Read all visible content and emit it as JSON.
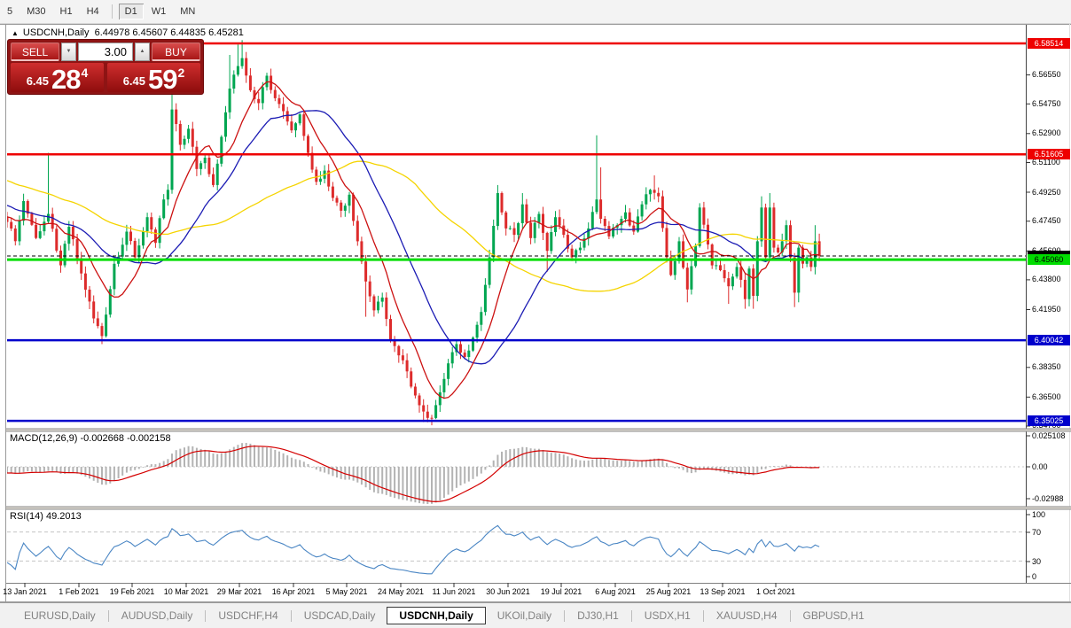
{
  "toolbar": {
    "items": [
      "5",
      "M30",
      "H1",
      "H4",
      "D1",
      "W1",
      "MN"
    ],
    "active": "D1",
    "separator_after_index": 3
  },
  "chart_header": {
    "collapse_icon": "▲",
    "symbol_title": "USDCNH,Daily",
    "ohlc": "6.44978 6.45607 6.44835 6.45281"
  },
  "trade_panel": {
    "sell_label": "SELL",
    "buy_label": "BUY",
    "volume": "3.00",
    "spin_up": "▲",
    "spin_down": "▼",
    "sell_price": {
      "prefix": "6.45",
      "big": "28",
      "sup": "4"
    },
    "buy_price": {
      "prefix": "6.45",
      "big": "59",
      "sup": "2"
    }
  },
  "bottom_tabs": {
    "tabs": [
      "EURUSD,Daily",
      "AUDUSD,Daily",
      "USDCHF,H4",
      "USDCAD,Daily",
      "USDCNH,Daily",
      "UKOil,Daily",
      "DJ30,H1",
      "USDX,H1",
      "XAUUSD,H4",
      "GBPUSD,H1"
    ],
    "active": "USDCNH,Daily",
    "scroll_left": "◄",
    "scroll_right": "►"
  },
  "chart_data": {
    "type": "candlestick",
    "symbol": "USDCNH",
    "timeframe": "Daily",
    "current_ohlc": {
      "open": 6.44978,
      "high": 6.45607,
      "low": 6.44835,
      "close": 6.45281
    },
    "bid_price": 6.45281,
    "price_axis_ticks": [
      {
        "label": "6.56550",
        "value": 6.5655
      },
      {
        "label": "6.54750",
        "value": 6.5475
      },
      {
        "label": "6.52900",
        "value": 6.529
      },
      {
        "label": "6.51100",
        "value": 6.511
      },
      {
        "label": "6.49250",
        "value": 6.4925
      },
      {
        "label": "6.47450",
        "value": 6.4745
      },
      {
        "label": "6.45600",
        "value": 6.456
      },
      {
        "label": "6.43800",
        "value": 6.438
      },
      {
        "label": "6.41950",
        "value": 6.4195
      },
      {
        "label": "6.38350",
        "value": 6.3835
      },
      {
        "label": "6.36500",
        "value": 6.365
      },
      {
        "label": "6.34700",
        "value": 6.347
      }
    ],
    "hlines": [
      {
        "label": "6.58514",
        "value": 6.58514,
        "color": "#ee0000",
        "text_color": "#ffffff",
        "width": 2.5
      },
      {
        "label": "6.51605",
        "value": 6.51605,
        "color": "#ee0000",
        "text_color": "#ffffff",
        "width": 2.5
      },
      {
        "label": "6.45060",
        "value": 6.4506,
        "color": "#00dd00",
        "text_color": "#000000",
        "width": 3
      },
      {
        "label": "6.40042",
        "value": 6.40042,
        "color": "#0000cc",
        "text_color": "#ffffff",
        "width": 2.5
      },
      {
        "label": "6.35025",
        "value": 6.35025,
        "color": "#0000cc",
        "text_color": "#ffffff",
        "width": 2.5
      }
    ],
    "x_labels": [
      "13 Jan 2021",
      "1 Feb 2021",
      "19 Feb 2021",
      "10 Mar 2021",
      "29 Mar 2021",
      "16 Apr 2021",
      "5 May 2021",
      "24 May 2021",
      "11 Jun 2021",
      "30 Jun 2021",
      "19 Jul 2021",
      "6 Aug 2021",
      "25 Aug 2021",
      "13 Sep 2021",
      "1 Oct 2021"
    ],
    "bars_count": 198,
    "close_keyframes": [
      [
        0,
        6.474
      ],
      [
        2,
        6.462
      ],
      [
        4,
        6.487
      ],
      [
        7,
        6.464
      ],
      [
        10,
        6.479
      ],
      [
        13,
        6.447
      ],
      [
        15,
        6.471
      ],
      [
        18,
        6.442
      ],
      [
        21,
        6.414
      ],
      [
        23,
        6.403
      ],
      [
        26,
        6.448
      ],
      [
        29,
        6.468
      ],
      [
        31,
        6.452
      ],
      [
        34,
        6.477
      ],
      [
        36,
        6.461
      ],
      [
        38,
        6.488
      ],
      [
        39,
        6.494
      ],
      [
        40,
        6.544
      ],
      [
        42,
        6.522
      ],
      [
        44,
        6.532
      ],
      [
        46,
        6.507
      ],
      [
        48,
        6.514
      ],
      [
        50,
        6.497
      ],
      [
        52,
        6.527
      ],
      [
        54,
        6.557
      ],
      [
        56,
        6.571
      ],
      [
        57,
        6.576
      ],
      [
        59,
        6.556
      ],
      [
        61,
        6.548
      ],
      [
        63,
        6.565
      ],
      [
        65,
        6.551
      ],
      [
        67,
        6.543
      ],
      [
        69,
        6.531
      ],
      [
        71,
        6.541
      ],
      [
        73,
        6.517
      ],
      [
        75,
        6.499
      ],
      [
        77,
        6.506
      ],
      [
        79,
        6.489
      ],
      [
        81,
        6.481
      ],
      [
        83,
        6.491
      ],
      [
        85,
        6.462
      ],
      [
        87,
        6.437
      ],
      [
        89,
        6.419
      ],
      [
        91,
        6.427
      ],
      [
        93,
        6.4
      ],
      [
        95,
        6.391
      ],
      [
        97,
        6.381
      ],
      [
        99,
        6.366
      ],
      [
        101,
        6.356
      ],
      [
        103,
        6.352
      ],
      [
        105,
        6.368
      ],
      [
        107,
        6.386
      ],
      [
        109,
        6.398
      ],
      [
        111,
        6.39
      ],
      [
        113,
        6.402
      ],
      [
        115,
        6.418
      ],
      [
        117,
        6.452
      ],
      [
        119,
        6.492
      ],
      [
        121,
        6.47
      ],
      [
        123,
        6.466
      ],
      [
        125,
        6.485
      ],
      [
        127,
        6.464
      ],
      [
        129,
        6.479
      ],
      [
        131,
        6.456
      ],
      [
        133,
        6.477
      ],
      [
        135,
        6.466
      ],
      [
        137,
        6.452
      ],
      [
        139,
        6.458
      ],
      [
        141,
        6.47
      ],
      [
        143,
        6.488
      ],
      [
        144,
        6.476
      ],
      [
        146,
        6.465
      ],
      [
        148,
        6.472
      ],
      [
        150,
        6.48
      ],
      [
        152,
        6.468
      ],
      [
        154,
        6.485
      ],
      [
        156,
        6.494
      ],
      [
        158,
        6.49
      ],
      [
        160,
        6.452
      ],
      [
        161,
        6.441
      ],
      [
        163,
        6.462
      ],
      [
        165,
        6.432
      ],
      [
        167,
        6.459
      ],
      [
        168,
        6.483
      ],
      [
        170,
        6.46
      ],
      [
        171,
        6.447
      ],
      [
        173,
        6.444
      ],
      [
        175,
        6.434
      ],
      [
        176,
        6.44
      ],
      [
        177,
        6.446
      ],
      [
        178,
        6.438
      ],
      [
        179,
        6.426
      ],
      [
        180,
        6.445
      ],
      [
        181,
        6.428
      ],
      [
        182,
        6.462
      ],
      [
        183,
        6.483
      ],
      [
        184,
        6.452
      ],
      [
        185,
        6.483
      ],
      [
        186,
        6.458
      ],
      [
        187,
        6.455
      ],
      [
        188,
        6.462
      ],
      [
        189,
        6.472
      ],
      [
        190,
        6.452
      ],
      [
        191,
        6.43
      ],
      [
        192,
        6.458
      ],
      [
        193,
        6.448
      ],
      [
        194,
        6.452
      ],
      [
        195,
        6.446
      ],
      [
        196,
        6.462
      ],
      [
        197,
        6.4528
      ]
    ],
    "wick_extremes": [
      [
        10,
        "h",
        6.517
      ],
      [
        23,
        "l",
        6.398
      ],
      [
        40,
        "h",
        6.554
      ],
      [
        54,
        "h",
        6.578
      ],
      [
        56,
        "h",
        6.5845
      ],
      [
        57,
        "h",
        6.5872
      ],
      [
        58,
        "h",
        6.578
      ],
      [
        87,
        "l",
        6.415
      ],
      [
        101,
        "l",
        6.3495
      ],
      [
        103,
        "l",
        6.3475
      ],
      [
        119,
        "h",
        6.497
      ],
      [
        125,
        "h",
        6.492
      ],
      [
        131,
        "l",
        6.443
      ],
      [
        143,
        "h",
        6.528
      ],
      [
        144,
        "h",
        6.508
      ],
      [
        157,
        "h",
        6.503
      ],
      [
        165,
        "l",
        6.424
      ],
      [
        175,
        "l",
        6.423
      ],
      [
        179,
        "l",
        6.42
      ],
      [
        181,
        "l",
        6.42
      ],
      [
        183,
        "h",
        6.49
      ],
      [
        185,
        "h",
        6.492
      ],
      [
        191,
        "l",
        6.421
      ],
      [
        192,
        "l",
        6.424
      ],
      [
        196,
        "h",
        6.472
      ]
    ],
    "candle_colors": {
      "up": "#00a651",
      "down": "#dd2b2b"
    },
    "ma_overlays": [
      {
        "period": 10,
        "color": "#cc1111"
      },
      {
        "period": 25,
        "color": "#1c1cb4"
      },
      {
        "period": 60,
        "color": "#f5d400"
      }
    ],
    "macd": {
      "label": "MACD(12,26,9) -0.002668 -0.002158",
      "params": [
        12,
        26,
        9
      ],
      "values": [
        -0.002668,
        -0.002158
      ],
      "axis_ticks": [
        "0.025108",
        "0.00",
        "-0.02988"
      ],
      "histogram_color": "#b3b3b3",
      "signal_color": "#d40000"
    },
    "rsi": {
      "label": "RSI(14) 49.2013",
      "period": 14,
      "value": 49.2013,
      "levels": [
        70,
        30
      ],
      "axis_ticks": [
        "100",
        "70",
        "30",
        "0"
      ],
      "line_color": "#4a86c4"
    }
  }
}
